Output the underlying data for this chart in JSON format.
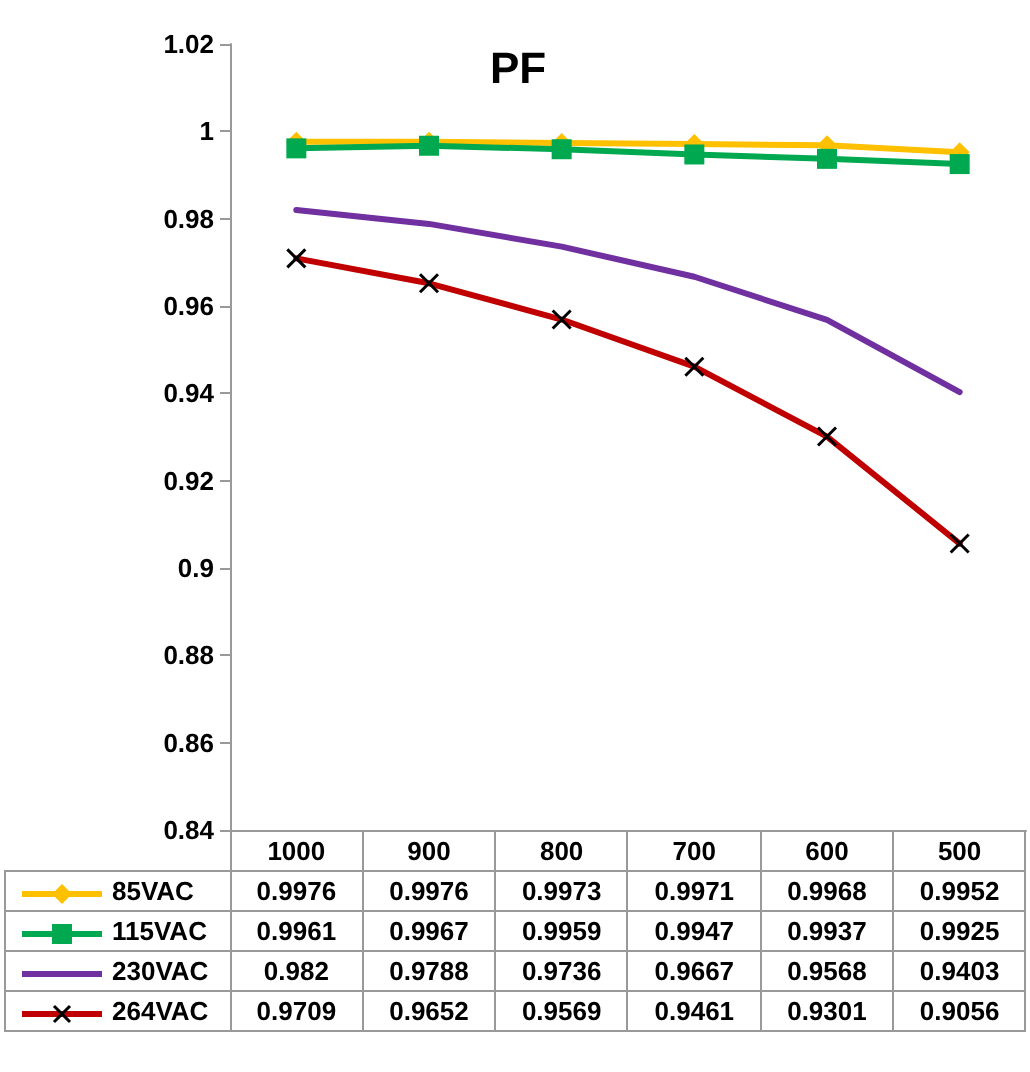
{
  "chart_data": {
    "type": "line",
    "title": "PF",
    "categories": [
      "1000",
      "900",
      "800",
      "700",
      "600",
      "500"
    ],
    "series": [
      {
        "name": "85VAC",
        "color": "#ffc000",
        "marker": "diamond",
        "values": [
          0.9976,
          0.9976,
          0.9973,
          0.9971,
          0.9968,
          0.9952
        ]
      },
      {
        "name": "115VAC",
        "color": "#00a850",
        "marker": "square",
        "values": [
          0.9961,
          0.9967,
          0.9959,
          0.9947,
          0.9937,
          0.9925
        ]
      },
      {
        "name": "230VAC",
        "color": "#7030a0",
        "marker": "none",
        "values": [
          0.982,
          0.9788,
          0.9736,
          0.9667,
          0.9568,
          0.9403
        ]
      },
      {
        "name": "264VAC",
        "color": "#c00000",
        "marker": "cross",
        "values": [
          0.9709,
          0.9652,
          0.9569,
          0.9461,
          0.9301,
          0.9056
        ]
      }
    ],
    "ylim": [
      0.84,
      1.02
    ],
    "yticks": [
      0.84,
      0.86,
      0.88,
      0.9,
      0.92,
      0.94,
      0.96,
      0.98,
      1,
      1.02
    ],
    "grid": false,
    "legend": "bottom",
    "data_labels": true
  }
}
